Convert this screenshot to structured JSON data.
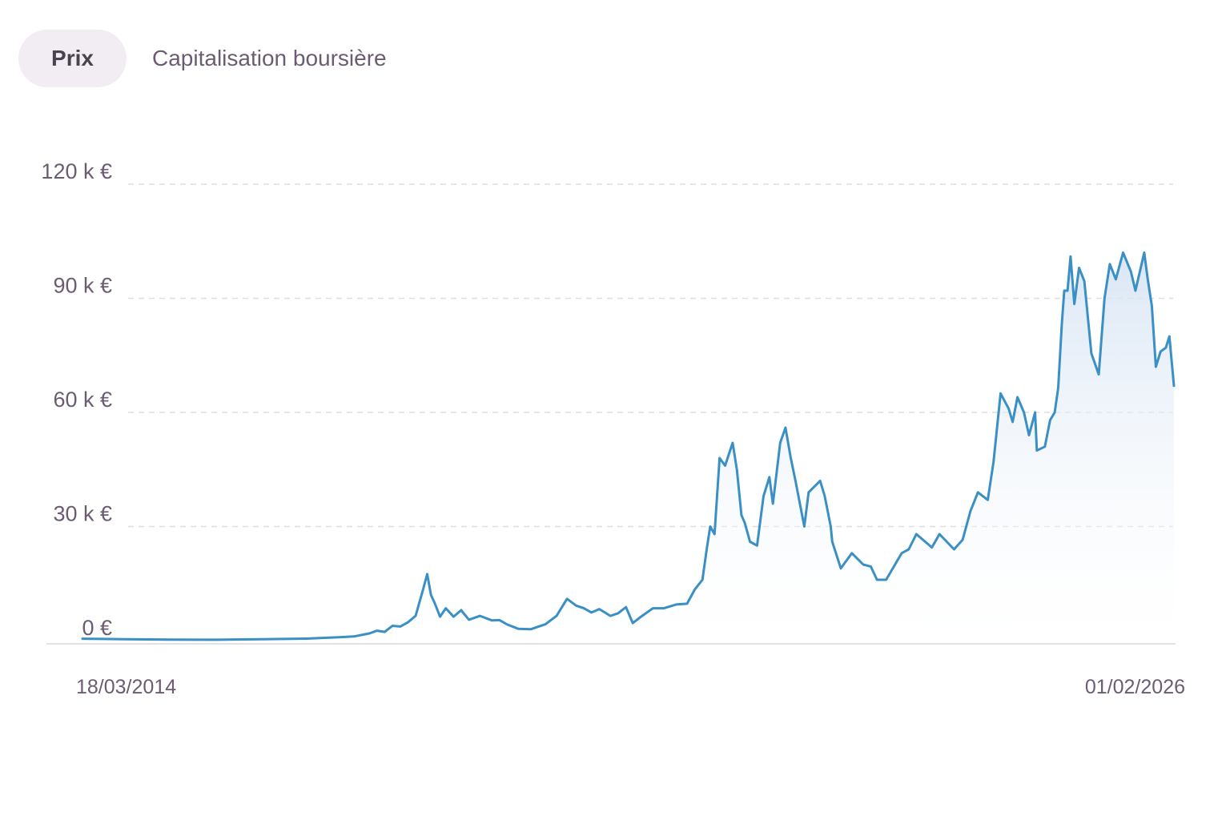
{
  "tabs": {
    "price_label": "Prix",
    "market_cap_label": "Capitalisation boursière",
    "active": "price"
  },
  "colors": {
    "line": "#3a8fc4",
    "fill_top": "#d4e2f3",
    "grid": "#dedede",
    "axis_text": "#6b5c72",
    "tab_active_bg": "#f1edf3"
  },
  "chart_data": {
    "type": "area",
    "y_tick_labels": [
      "0 €",
      "30 k €",
      "60 k €",
      "90 k €",
      "120 k €"
    ],
    "y_ticks": [
      0,
      30000,
      60000,
      90000,
      120000
    ],
    "ylim": [
      0,
      124000
    ],
    "x_start_label": "18/03/2014",
    "x_end_label": "01/02/2026",
    "x_range": [
      "2014-03-18",
      "2026-02-01"
    ],
    "grid": "horizontal-dashed",
    "legend": "none",
    "series": [
      {
        "x": [
          "2014-03-18",
          "2014-09-01",
          "2015-03-01",
          "2015-09-01",
          "2016-03-01",
          "2016-09-01",
          "2017-01-01",
          "2017-03-01",
          "2017-05-01",
          "2017-06-01",
          "2017-07-01",
          "2017-08-01",
          "2017-09-01",
          "2017-10-01",
          "2017-11-01",
          "2017-12-01",
          "2017-12-17",
          "2018-01-01",
          "2018-01-15",
          "2018-02-06",
          "2018-03-01",
          "2018-04-01",
          "2018-05-01",
          "2018-06-01",
          "2018-07-15",
          "2018-09-01",
          "2018-10-01",
          "2018-11-01",
          "2018-12-15",
          "2019-02-01",
          "2019-04-01",
          "2019-05-15",
          "2019-06-26",
          "2019-08-01",
          "2019-09-01",
          "2019-10-01",
          "2019-11-01",
          "2019-12-15",
          "2020-01-15",
          "2020-02-15",
          "2020-03-13",
          "2020-04-15",
          "2020-06-01",
          "2020-07-15",
          "2020-09-01",
          "2020-10-15",
          "2020-11-15",
          "2020-12-15",
          "2021-01-01",
          "2021-01-15",
          "2021-02-01",
          "2021-02-21",
          "2021-03-15",
          "2021-04-14",
          "2021-05-01",
          "2021-05-19",
          "2021-06-01",
          "2021-06-22",
          "2021-07-20",
          "2021-08-15",
          "2021-09-07",
          "2021-09-21",
          "2021-10-20",
          "2021-11-10",
          "2021-12-01",
          "2021-12-20",
          "2022-01-24",
          "2022-02-10",
          "2022-03-28",
          "2022-04-15",
          "2022-05-09",
          "2022-05-15",
          "2022-06-18",
          "2022-08-01",
          "2022-09-15",
          "2022-10-15",
          "2022-11-09",
          "2022-12-15",
          "2023-01-15",
          "2023-02-15",
          "2023-03-15",
          "2023-04-14",
          "2023-06-15",
          "2023-07-15",
          "2023-09-11",
          "2023-10-15",
          "2023-11-15",
          "2023-12-15",
          "2024-01-23",
          "2024-02-15",
          "2024-03-14",
          "2024-04-15",
          "2024-05-01",
          "2024-05-20",
          "2024-06-15",
          "2024-07-05",
          "2024-07-29",
          "2024-08-05",
          "2024-09-06",
          "2024-09-27",
          "2024-10-15",
          "2024-10-29",
          "2024-11-12",
          "2024-11-22",
          "2024-12-05",
          "2024-12-17",
          "2025-01-01",
          "2025-01-20",
          "2025-02-10",
          "2025-03-10",
          "2025-04-08",
          "2025-05-01",
          "2025-05-22",
          "2025-06-15",
          "2025-07-14",
          "2025-08-14",
          "2025-09-01",
          "2025-10-06",
          "2025-10-20",
          "2025-11-05",
          "2025-11-21",
          "2025-12-10",
          "2025-12-31",
          "2026-01-14",
          "2026-02-01"
        ],
        "values": [
          500,
          350,
          250,
          230,
          380,
          550,
          900,
          1100,
          1900,
          2600,
          2300,
          3900,
          3700,
          4800,
          6500,
          13500,
          17500,
          12000,
          10000,
          6300,
          8500,
          6300,
          8000,
          5500,
          6500,
          5300,
          5400,
          4200,
          3100,
          3000,
          4300,
          6500,
          11000,
          9200,
          8500,
          7400,
          8300,
          6500,
          7200,
          8800,
          4600,
          6300,
          8500,
          8500,
          9500,
          9700,
          13500,
          16000,
          24000,
          30000,
          28000,
          48000,
          46000,
          52000,
          45000,
          33000,
          31000,
          26000,
          25000,
          38000,
          43000,
          36000,
          52000,
          56000,
          48000,
          42000,
          30000,
          39000,
          42000,
          38000,
          30000,
          26000,
          19000,
          23000,
          20000,
          19500,
          16000,
          16000,
          19500,
          23000,
          24000,
          28000,
          24500,
          28000,
          24000,
          26500,
          34000,
          39000,
          37000,
          47000,
          65000,
          61000,
          57500,
          64000,
          60000,
          54000,
          60000,
          50000,
          51000,
          58000,
          60000,
          66500,
          83000,
          92000,
          92000,
          101000,
          88500,
          98000,
          94500,
          75500,
          70000,
          90000,
          99000,
          95000,
          102000,
          97000,
          92000,
          102000,
          95000,
          88000,
          72000,
          76000,
          77000,
          80000,
          67000
        ]
      }
    ]
  }
}
